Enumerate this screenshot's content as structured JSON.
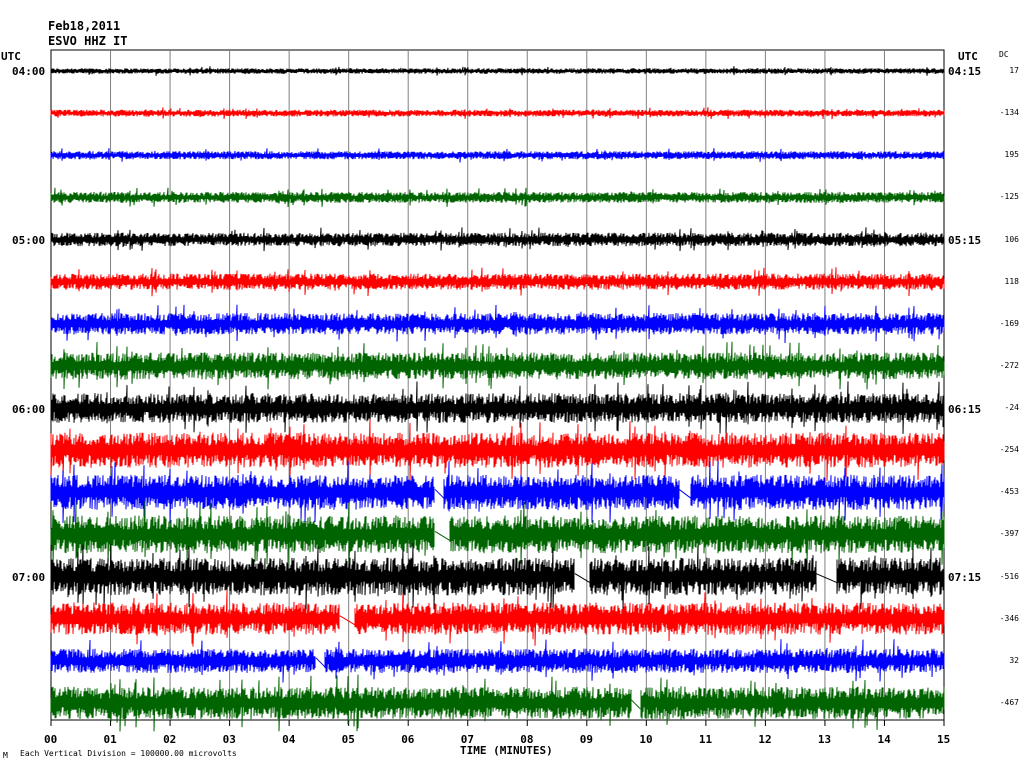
{
  "header": {
    "date": "Feb18,2011",
    "station": "ESVO HHZ IT"
  },
  "utc_left_label": "UTC",
  "utc_right_label": "UTC",
  "dc_label": "DC",
  "xlabel": "TIME (MINUTES)",
  "footnote": "Each Vertical Division = 100000.00 microvolts",
  "footnote_mark": "M",
  "colors": {
    "black": "#000000",
    "red": "#ff0000",
    "blue": "#0000ff",
    "green": "#006400",
    "grid": "#808080"
  },
  "left_time_labels": [
    "04:00",
    "05:00",
    "06:00",
    "07:00"
  ],
  "right_time_labels": [
    "04:15",
    "05:15",
    "06:15",
    "07:15"
  ],
  "x_ticks": [
    "00",
    "01",
    "02",
    "03",
    "04",
    "05",
    "06",
    "07",
    "08",
    "09",
    "10",
    "11",
    "12",
    "13",
    "14",
    "15"
  ],
  "dc_values": [
    "17",
    "-134",
    "195",
    "-125",
    "106",
    "118",
    "-169",
    "-272",
    "-24",
    "-254",
    "-453",
    "-397",
    "-516",
    "-346",
    "32",
    "-467"
  ],
  "chart_data": {
    "type": "line",
    "title": "",
    "xlabel": "TIME (MINUTES)",
    "xlim": [
      0,
      15
    ],
    "grid": true,
    "traces": [
      {
        "start": "04:00",
        "color": "black",
        "amp": 2,
        "gaps": []
      },
      {
        "start": "04:15",
        "color": "red",
        "amp": 2.5,
        "gaps": []
      },
      {
        "start": "04:30",
        "color": "blue",
        "amp": 3,
        "gaps": []
      },
      {
        "start": "04:45",
        "color": "green",
        "amp": 4,
        "gaps": []
      },
      {
        "start": "05:00",
        "color": "black",
        "amp": 5,
        "gaps": []
      },
      {
        "start": "05:15",
        "color": "red",
        "amp": 6,
        "gaps": []
      },
      {
        "start": "05:30",
        "color": "blue",
        "amp": 8,
        "gaps": []
      },
      {
        "start": "05:45",
        "color": "green",
        "amp": 10,
        "gaps": []
      },
      {
        "start": "06:00",
        "color": "black",
        "amp": 11,
        "gaps": []
      },
      {
        "start": "06:15",
        "color": "red",
        "amp": 13,
        "gaps": []
      },
      {
        "start": "06:30",
        "color": "blue",
        "amp": 13,
        "gaps": [
          [
            6.45,
            6.6
          ],
          [
            10.55,
            10.75
          ]
        ]
      },
      {
        "start": "06:45",
        "color": "green",
        "amp": 14,
        "gaps": [
          [
            6.45,
            6.7
          ]
        ]
      },
      {
        "start": "07:00",
        "color": "black",
        "amp": 14,
        "gaps": [
          [
            8.8,
            9.05
          ],
          [
            12.85,
            13.2
          ]
        ]
      },
      {
        "start": "07:15",
        "color": "red",
        "amp": 12,
        "gaps": [
          [
            4.85,
            5.1
          ]
        ]
      },
      {
        "start": "07:30",
        "color": "blue",
        "amp": 9,
        "gaps": [
          [
            4.45,
            4.6
          ]
        ]
      },
      {
        "start": "07:45",
        "color": "green",
        "amp": 12,
        "gaps": [
          [
            9.75,
            9.9
          ]
        ]
      }
    ]
  }
}
